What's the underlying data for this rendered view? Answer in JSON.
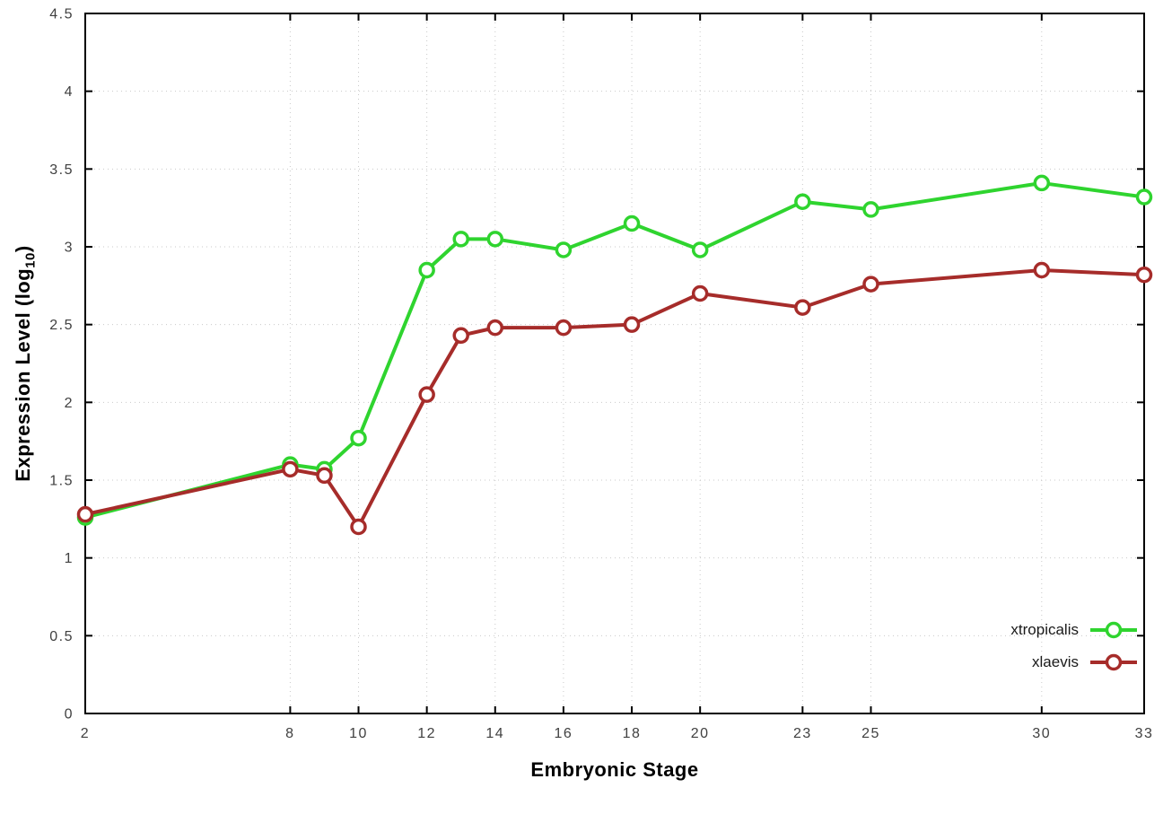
{
  "chart_data": {
    "type": "line",
    "title": "",
    "xlabel": "Embryonic Stage",
    "ylabel": "Expression Level (log10)",
    "ylabel_parts": {
      "prefix": "Expression Level (log",
      "sub": "10",
      "suffix": ")"
    },
    "x": [
      2,
      8,
      9,
      10,
      12,
      13,
      14,
      16,
      18,
      20,
      23,
      25,
      30,
      33
    ],
    "xticks": [
      2,
      8,
      10,
      12,
      14,
      16,
      18,
      20,
      23,
      25,
      30,
      33
    ],
    "xtick_labels": [
      "2",
      "8",
      "10",
      "12",
      "14",
      "16",
      "18",
      "20",
      "23",
      "25",
      "30",
      "33"
    ],
    "yticks": [
      0,
      0.5,
      1,
      1.5,
      2,
      2.5,
      3,
      3.5,
      4,
      4.5
    ],
    "ytick_labels": [
      "0",
      "0.5",
      "1",
      "1.5",
      "2",
      "2.5",
      "3",
      "3.5",
      "4",
      "4.5"
    ],
    "xlim": [
      2,
      33
    ],
    "ylim": [
      0,
      4.5
    ],
    "grid": true,
    "grid_style": "dotted",
    "legend_position": "bottom-right",
    "marker": "open-circle",
    "series": [
      {
        "name": "xtropicalis",
        "color": "#2fd42f",
        "values": [
          1.26,
          1.6,
          1.57,
          1.77,
          2.85,
          3.05,
          3.05,
          2.98,
          3.15,
          2.98,
          3.29,
          3.24,
          3.41,
          3.32
        ]
      },
      {
        "name": "xlaevis",
        "color": "#a62c2a",
        "values": [
          1.28,
          1.57,
          1.53,
          1.2,
          2.05,
          2.43,
          2.48,
          2.48,
          2.5,
          2.7,
          2.61,
          2.76,
          2.85,
          2.82
        ]
      }
    ],
    "colors": {
      "background": "#ffffff",
      "border": "#000000",
      "grid": "#c9c9c9",
      "tick_text": "#404040"
    }
  }
}
